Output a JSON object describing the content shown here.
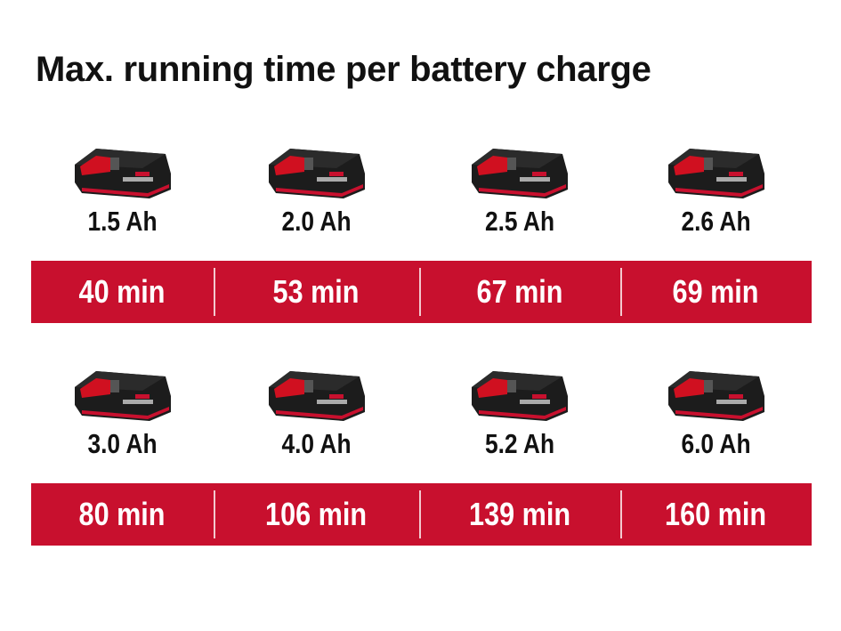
{
  "title": "Max. running time per battery charge",
  "colors": {
    "accent_red": "#c8102e",
    "battery_body": "#1c1c1c",
    "text": "#111111"
  },
  "rows": [
    {
      "items": [
        {
          "capacity": "1.5 Ah",
          "runtime": "40 min",
          "icon": "battery-pack-icon"
        },
        {
          "capacity": "2.0 Ah",
          "runtime": "53 min",
          "icon": "battery-pack-icon"
        },
        {
          "capacity": "2.5 Ah",
          "runtime": "67 min",
          "icon": "battery-pack-icon"
        },
        {
          "capacity": "2.6 Ah",
          "runtime": "69 min",
          "icon": "battery-pack-icon"
        }
      ]
    },
    {
      "items": [
        {
          "capacity": "3.0 Ah",
          "runtime": "80 min",
          "icon": "battery-pack-icon"
        },
        {
          "capacity": "4.0 Ah",
          "runtime": "106 min",
          "icon": "battery-pack-icon"
        },
        {
          "capacity": "5.2 Ah",
          "runtime": "139 min",
          "icon": "battery-pack-icon"
        },
        {
          "capacity": "6.0 Ah",
          "runtime": "160 min",
          "icon": "battery-pack-icon"
        }
      ]
    }
  ]
}
